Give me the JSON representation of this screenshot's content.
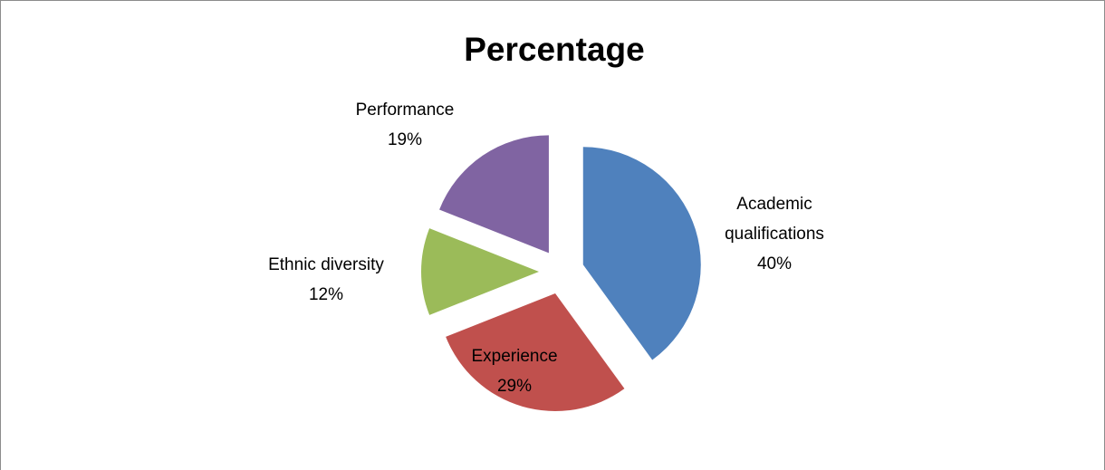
{
  "chart_data": {
    "type": "pie",
    "title": "Percentage",
    "categories": [
      "Academic qualifications",
      "Experience",
      "Ethnic diversity",
      "Performance"
    ],
    "values": [
      40,
      29,
      12,
      19
    ],
    "value_labels": [
      "40%",
      "29%",
      "12%",
      "19%"
    ],
    "colors": [
      "#4f81bd",
      "#c0504d",
      "#9bbb59",
      "#8064a2"
    ],
    "exploded": true
  }
}
